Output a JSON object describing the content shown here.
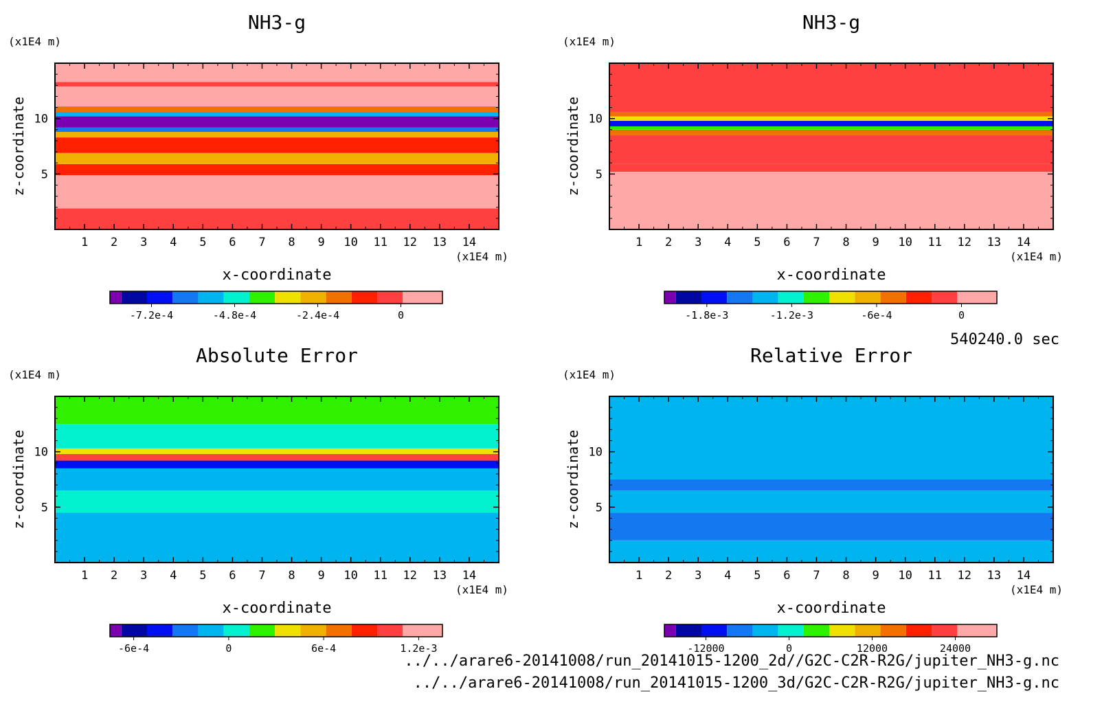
{
  "time_label": "540240.0 sec",
  "files": [
    "../../arare6-20141008/run_20141015-1200_2d//G2C-C2R-R2G/jupiter_NH3-g.nc",
    "../../arare6-20141008/run_20141015-1200_3d/G2C-C2R-R2G/jupiter_NH3-g.nc"
  ],
  "colors": {
    "palette": [
      "#7a00b0",
      "#0008a0",
      "#0010f0",
      "#1478f0",
      "#00b4f0",
      "#00f0d0",
      "#30f000",
      "#f0e000",
      "#f0b000",
      "#f07000",
      "#ff2000",
      "#ff4040",
      "#ffa8a8"
    ]
  },
  "chart_data": [
    {
      "type": "heatmap",
      "title": "NH3-g",
      "xlabel": "x-coordinate",
      "ylabel": "z-coordinate",
      "x_unit": "(x1E4 m)",
      "y_unit": "(x1E4 m)",
      "xlim": [
        0,
        15
      ],
      "ylim": [
        0,
        15
      ],
      "x_ticks": [
        "1",
        "2",
        "3",
        "4",
        "5",
        "6",
        "7",
        "8",
        "9",
        "10",
        "11",
        "12",
        "13",
        "14"
      ],
      "y_ticks": [
        "5",
        "10"
      ],
      "colorbar_ticks": [
        "-7.2e-4",
        "-4.8e-4",
        "-2.4e-4",
        "0"
      ],
      "colorbar_range": [
        -0.00084,
        0.00012
      ],
      "bands": [
        {
          "z": [
            0,
            1.9
          ],
          "value": 0.0
        },
        {
          "z": [
            1.9,
            4.9
          ],
          "value": 7e-05
        },
        {
          "z": [
            4.9,
            5.9
          ],
          "value": -8e-05
        },
        {
          "z": [
            5.9,
            6.9
          ],
          "value": -0.00018
        },
        {
          "z": [
            6.9,
            8.3
          ],
          "value": -5e-05
        },
        {
          "z": [
            8.3,
            8.8
          ],
          "value": -0.00018
        },
        {
          "z": [
            8.8,
            9.2
          ],
          "value": -0.0006
        },
        {
          "z": [
            9.2,
            10.2
          ],
          "value": -0.00078
        },
        {
          "z": [
            10.2,
            10.6
          ],
          "value": -0.0005
        },
        {
          "z": [
            10.6,
            11.1
          ],
          "value": -0.00012
        },
        {
          "z": [
            11.1,
            12.9
          ],
          "value": 7e-05
        },
        {
          "z": [
            12.9,
            13.3
          ],
          "value": 0.0
        },
        {
          "z": [
            13.3,
            15
          ],
          "value": 7e-05
        }
      ]
    },
    {
      "type": "heatmap",
      "title": "NH3-g",
      "xlabel": "x-coordinate",
      "ylabel": "z-coordinate",
      "x_unit": "(x1E4 m)",
      "y_unit": "(x1E4 m)",
      "xlim": [
        0,
        15
      ],
      "ylim": [
        0,
        15
      ],
      "x_ticks": [
        "1",
        "2",
        "3",
        "4",
        "5",
        "6",
        "7",
        "8",
        "9",
        "10",
        "11",
        "12",
        "13",
        "14"
      ],
      "y_ticks": [
        "5",
        "10"
      ],
      "colorbar_ticks": [
        "-1.8e-3",
        "-1.2e-3",
        "-6e-4",
        "0"
      ],
      "colorbar_range": [
        -0.0021,
        0.00025
      ],
      "bands": [
        {
          "z": [
            0,
            5.2
          ],
          "value": 0.0001
        },
        {
          "z": [
            5.2,
            5.9
          ],
          "value": -0.0001
        },
        {
          "z": [
            5.9,
            8.5
          ],
          "value": 0.0
        },
        {
          "z": [
            8.5,
            9.0
          ],
          "value": -0.0003
        },
        {
          "z": [
            9.0,
            9.3
          ],
          "value": -0.0009
        },
        {
          "z": [
            9.3,
            9.8
          ],
          "value": -0.0016
        },
        {
          "z": [
            9.8,
            10.2
          ],
          "value": -0.0007
        },
        {
          "z": [
            10.2,
            10.6
          ],
          "value": -0.0003
        },
        {
          "z": [
            10.6,
            15
          ],
          "value": 0.0
        }
      ]
    },
    {
      "type": "heatmap",
      "title": "Absolute Error",
      "xlabel": "x-coordinate",
      "ylabel": "z-coordinate",
      "x_unit": "(x1E4 m)",
      "y_unit": "(x1E4 m)",
      "xlim": [
        0,
        15
      ],
      "ylim": [
        0,
        15
      ],
      "x_ticks": [
        "1",
        "2",
        "3",
        "4",
        "5",
        "6",
        "7",
        "8",
        "9",
        "10",
        "11",
        "12",
        "13",
        "14"
      ],
      "y_ticks": [
        "5",
        "10"
      ],
      "colorbar_ticks": [
        "-6e-4",
        "0",
        "6e-4",
        "1.2e-3"
      ],
      "colorbar_range": [
        -0.00075,
        0.00135
      ],
      "bands": [
        {
          "z": [
            0,
            4.5
          ],
          "value": -0.0001
        },
        {
          "z": [
            4.5,
            6.5
          ],
          "value": 0.0002
        },
        {
          "z": [
            6.5,
            8.5
          ],
          "value": -0.0001
        },
        {
          "z": [
            8.5,
            9.2
          ],
          "value": -0.0003
        },
        {
          "z": [
            9.2,
            9.8
          ],
          "value": 0.0011
        },
        {
          "z": [
            9.8,
            10.3
          ],
          "value": 0.0004
        },
        {
          "z": [
            10.3,
            12.5
          ],
          "value": 0.00015
        },
        {
          "z": [
            12.5,
            15
          ],
          "value": 0.00025
        }
      ]
    },
    {
      "type": "heatmap",
      "title": "Relative Error",
      "xlabel": "x-coordinate",
      "ylabel": "z-coordinate",
      "x_unit": "(x1E4 m)",
      "y_unit": "(x1E4 m)",
      "xlim": [
        0,
        15
      ],
      "ylim": [
        0,
        15
      ],
      "x_ticks": [
        "1",
        "2",
        "3",
        "4",
        "5",
        "6",
        "7",
        "8",
        "9",
        "10",
        "11",
        "12",
        "13",
        "14"
      ],
      "y_ticks": [
        "5",
        "10"
      ],
      "colorbar_ticks": [
        "-12000",
        "0",
        "12000",
        "24000"
      ],
      "colorbar_range": [
        -18000,
        30000
      ],
      "bands": [
        {
          "z": [
            0,
            2.0
          ],
          "value": -2500
        },
        {
          "z": [
            2.0,
            4.5
          ],
          "value": -5500
        },
        {
          "z": [
            4.5,
            6.5
          ],
          "value": -2500
        },
        {
          "z": [
            6.5,
            7.5
          ],
          "value": -5500
        },
        {
          "z": [
            7.5,
            15
          ],
          "value": -2000
        }
      ]
    }
  ]
}
